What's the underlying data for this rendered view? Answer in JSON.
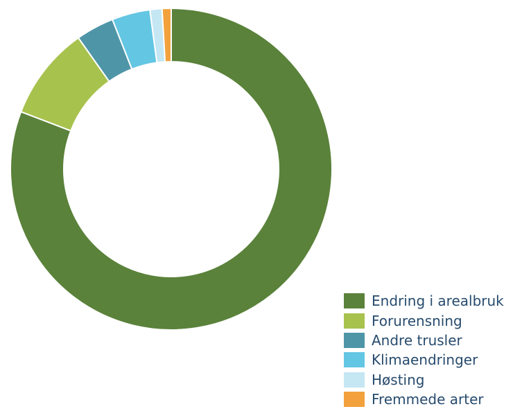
{
  "chart_data": {
    "type": "pie",
    "variant": "donut",
    "title": "",
    "legend_position": "bottom-right",
    "series": [
      {
        "categories": [
          "Endring i arealbruk",
          "Forurensning",
          "Andre trusler",
          "Klimaendringer",
          "Høsting",
          "Fremmede arter"
        ],
        "values": [
          80.0,
          9.3,
          3.8,
          3.8,
          1.2,
          0.9
        ],
        "colors": [
          "#5a823a",
          "#a8c24e",
          "#4f95a8",
          "#63c6e3",
          "#c5e6f3",
          "#f2a13c"
        ]
      }
    ]
  }
}
